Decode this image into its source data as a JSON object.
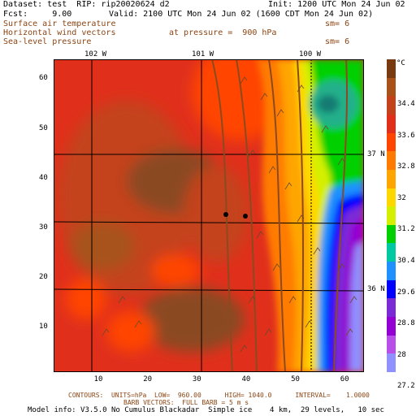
{
  "header": {
    "dataset": "Dataset: test  RIP: rip20020624 d2",
    "init": "Init: 1200 UTC Mon 24 Jun 02",
    "fcst": "Fcst:     9.00",
    "valid": "Valid: 2100 UTC Mon 24 Jun 02 (1600 CDT Mon 24 Jun 02)",
    "field1": "Surface air temperature",
    "field1_sm": "sm= 6",
    "field2": "Horizontal wind vectors",
    "field2_pressure": "at pressure =  900 hPa",
    "field3": "Sea-level pressure",
    "field3_sm": "sm= 6"
  },
  "map": {
    "x_ticks": [
      10,
      20,
      30,
      40,
      50,
      60
    ],
    "y_ticks": [
      10,
      20,
      30,
      40,
      50,
      60
    ],
    "lon_labels": [
      "102 W",
      "101 W",
      "100 W"
    ],
    "lat_labels": [
      "37 N",
      "36 N"
    ]
  },
  "colorbar": {
    "unit": "°C",
    "labels": [
      "34.4",
      "33.6",
      "32.8",
      "32",
      "31.2",
      "30.4",
      "29.6",
      "28.8",
      "28",
      "27.2"
    ],
    "colors": [
      "#7a3a10",
      "#a8521a",
      "#c4421b",
      "#e0301c",
      "#ff4500",
      "#ff7b00",
      "#ffa500",
      "#ffd700",
      "#d4f000",
      "#00d000",
      "#00c8a0",
      "#1e90ff",
      "#0000ff",
      "#7b2bd6",
      "#9400d3",
      "#b84fe8",
      "#9090ff"
    ]
  },
  "footer": {
    "contours": "CONTOURS:  UNITS=hPa  LOW=  960.00      HIGH= 1040.0      INTERVAL=    1.0000",
    "barbs": "BARB VECTORS:  FULL BARB = 5 m s",
    "model": "Model info: V3.5.0 No Cumulus Blackadar  Simple ice    4 km,  29 levels,   10 sec"
  }
}
